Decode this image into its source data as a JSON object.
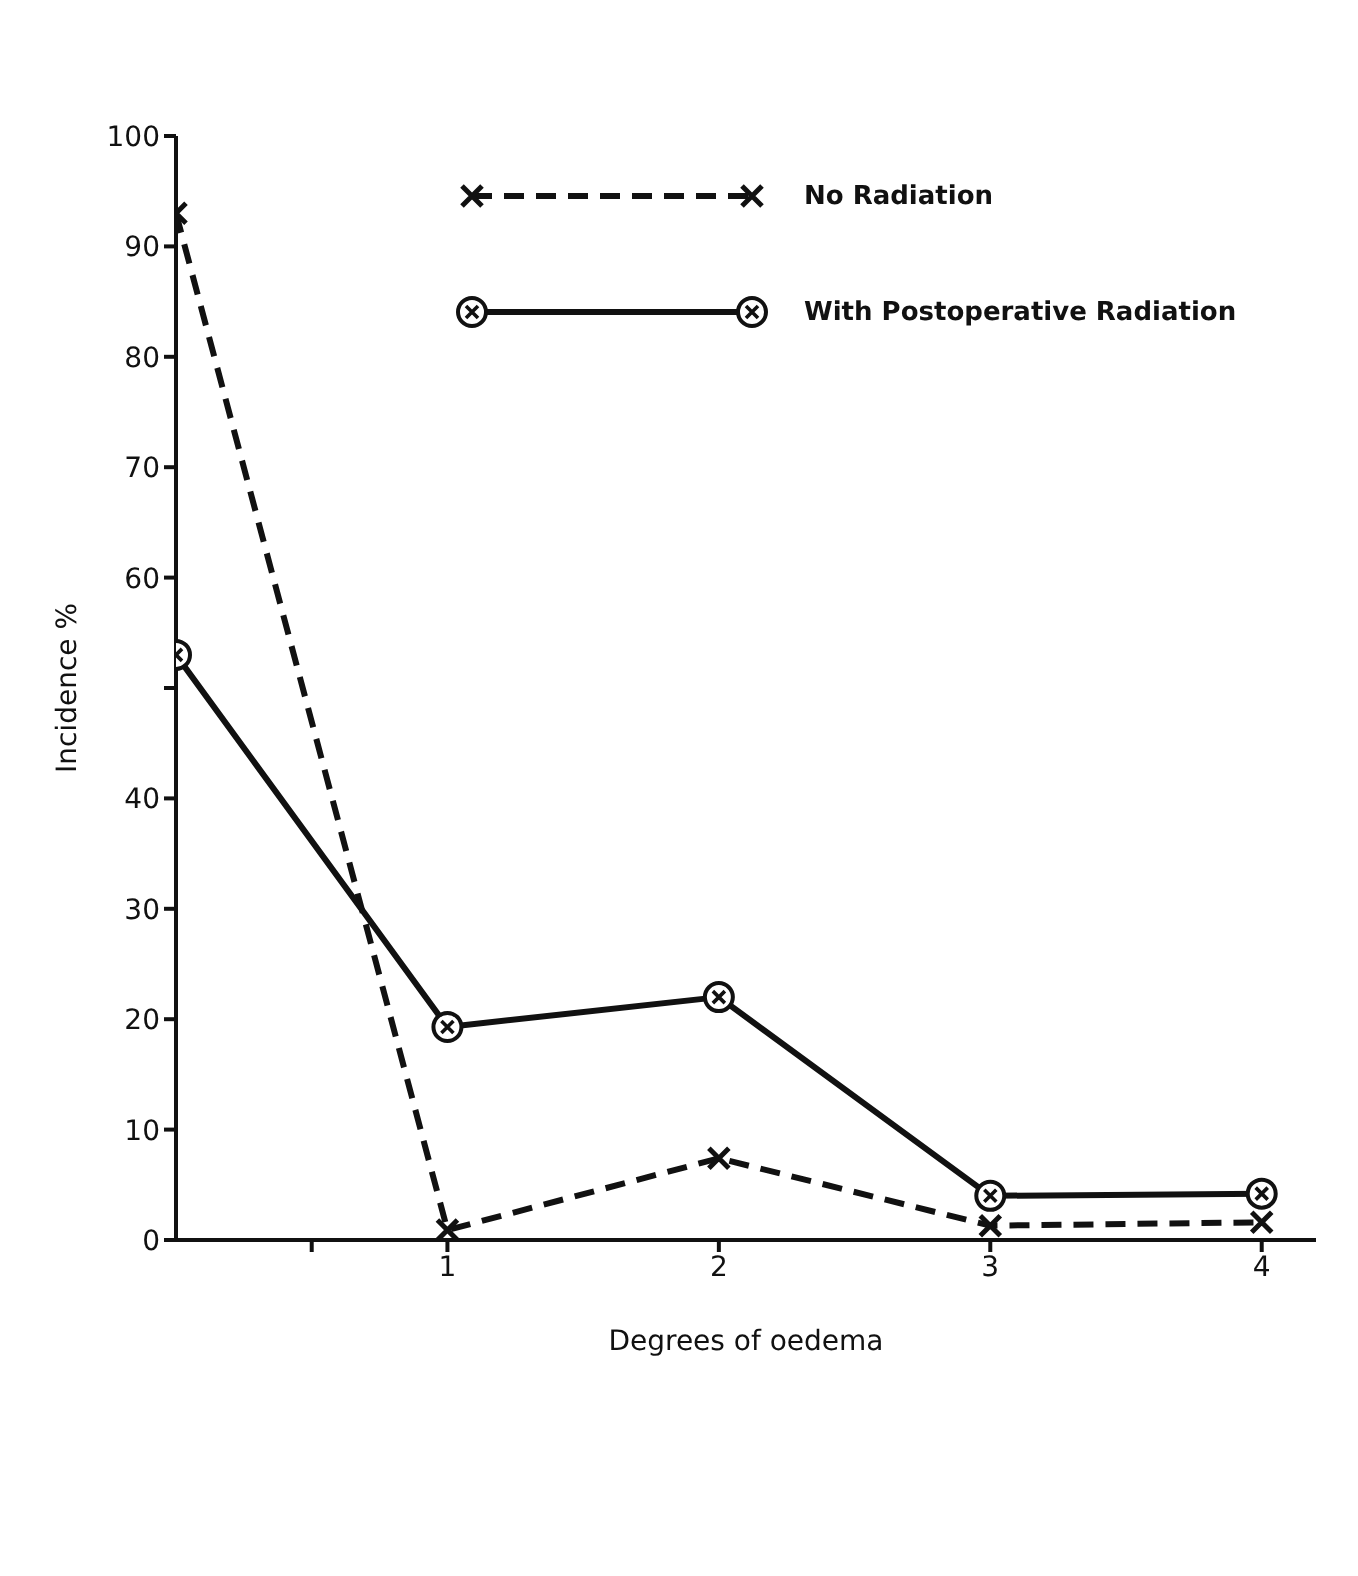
{
  "chart_data": {
    "type": "line",
    "xlabel": "Degrees of oedema",
    "ylabel": "Incidence %",
    "x": [
      0,
      1,
      2,
      3,
      4
    ],
    "series": [
      {
        "name": "No Radiation",
        "color": "#111111",
        "values": [
          93,
          0.9,
          7.4,
          1.3,
          1.6
        ],
        "line_style": "dashed",
        "marker": "cross"
      },
      {
        "name": "With Postoperative Radiation",
        "color": "#111111",
        "values": [
          53,
          19.3,
          22,
          4,
          4.2
        ],
        "line_style": "solid",
        "marker": "circle"
      }
    ],
    "xlim": [
      0,
      4.2
    ],
    "xticks": [
      {
        "value": 0.5,
        "label": null
      },
      1,
      2,
      3,
      4
    ],
    "ylim": [
      0,
      100
    ],
    "yticks": [
      0,
      10,
      20,
      30,
      40,
      {
        "value": 50,
        "label": null
      },
      60,
      70,
      80,
      90,
      100
    ],
    "grid": false,
    "legend": "top"
  }
}
